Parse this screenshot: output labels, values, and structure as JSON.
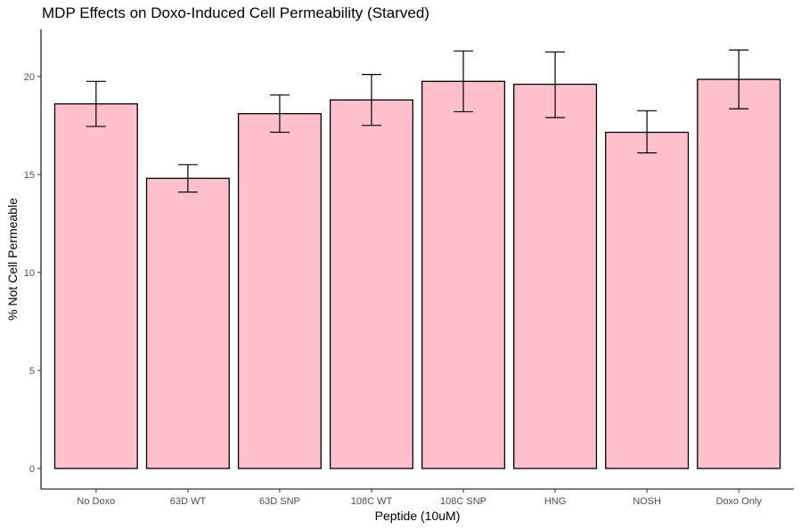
{
  "chart_data": {
    "type": "bar",
    "title": "MDP Effects on Doxo-Induced Cell Permeability (Starved)",
    "xlabel": "Peptide (10uM)",
    "ylabel": "% Not Cell Permeable",
    "categories": [
      "No Doxo",
      "63D WT",
      "63D SNP",
      "108C WT",
      "108C SNP",
      "HNG",
      "NOSH",
      "Doxo Only"
    ],
    "values": [
      18.6,
      14.8,
      18.1,
      18.8,
      19.75,
      19.6,
      17.15,
      19.85
    ],
    "error_low": [
      17.45,
      14.1,
      17.15,
      17.5,
      18.2,
      17.9,
      16.1,
      18.35
    ],
    "error_high": [
      19.75,
      15.5,
      19.05,
      20.1,
      21.3,
      21.25,
      18.25,
      21.35
    ],
    "ylim": [
      -1.05,
      22.4
    ],
    "yticks": [
      0,
      5,
      10,
      15,
      20
    ],
    "grid": false,
    "colors": {
      "bar_fill": "#FFC0CB",
      "bar_stroke": "#000000",
      "axis": "#000000",
      "tick_text": "#4d4d4d"
    }
  }
}
